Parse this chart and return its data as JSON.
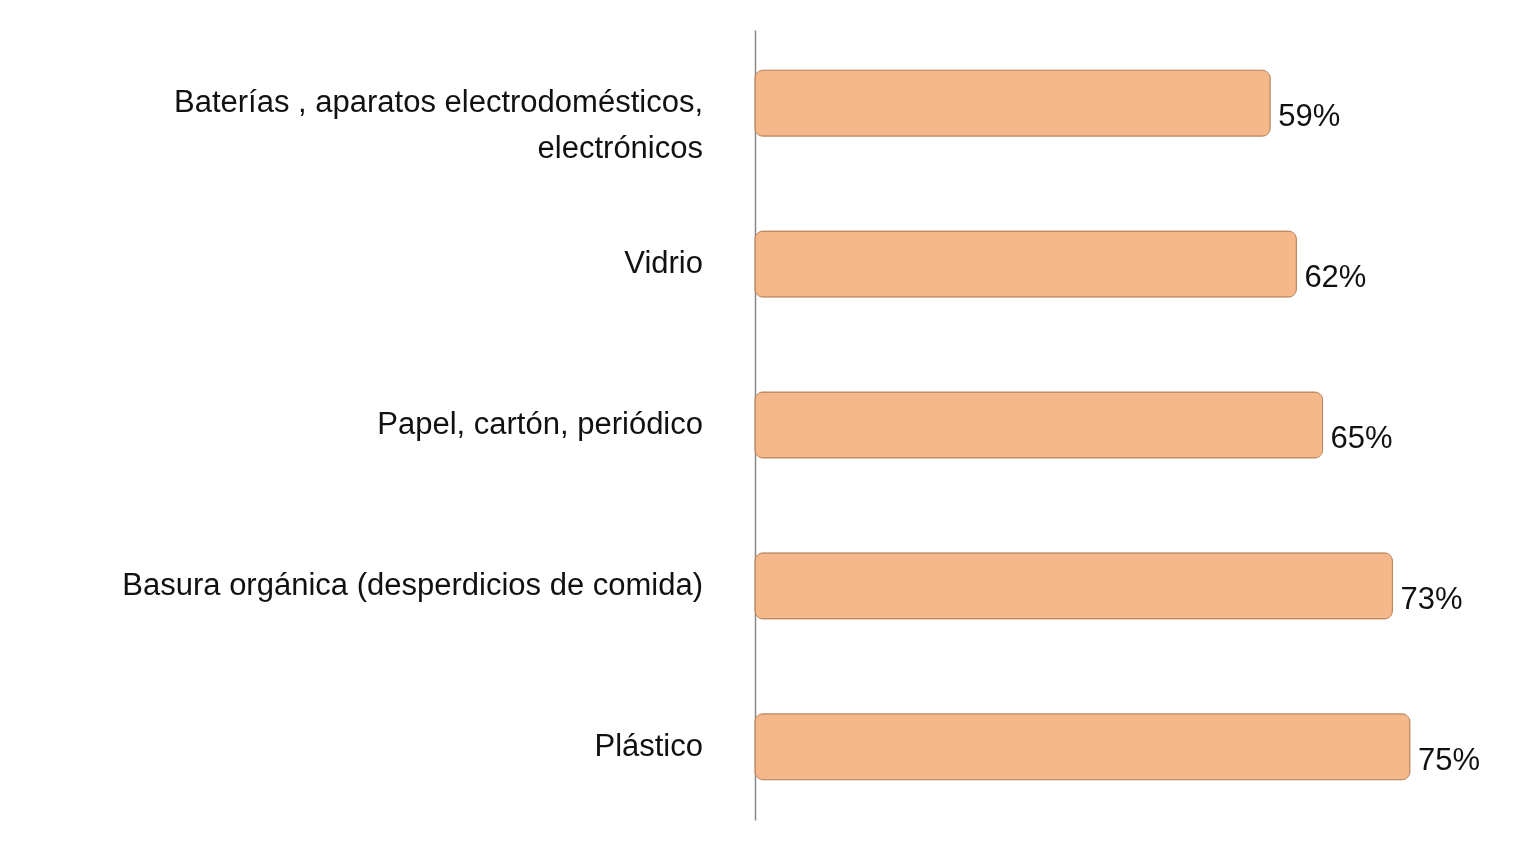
{
  "chart_data": {
    "type": "bar",
    "orientation": "horizontal",
    "categories": [
      "Baterías , aparatos electrodomésticos, electrónicos",
      "Vidrio",
      "Papel, cartón, periódico",
      "Basura orgánica (desperdicios de comida)",
      "Plástico"
    ],
    "values": [
      59,
      62,
      65,
      73,
      75
    ],
    "value_labels": [
      "59%",
      "62%",
      "65%",
      "73%",
      "75%"
    ],
    "color": "#f5b88b"
  }
}
